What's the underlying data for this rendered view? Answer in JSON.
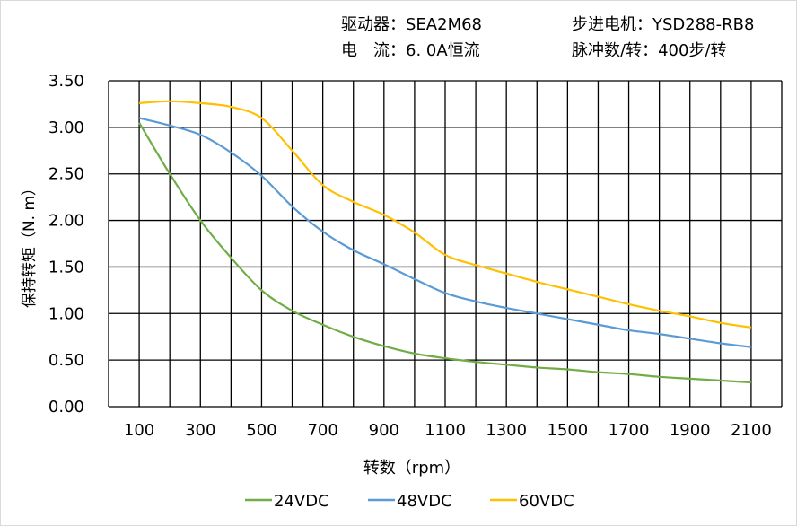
{
  "header": {
    "driver": "驱动器：SEA2M68",
    "motor": "步进电机：YSD288-RB8",
    "current": "电　流：6. 0A恒流",
    "pulses": "脉冲数/转：400步/转"
  },
  "chart_data": {
    "type": "line",
    "title": "",
    "xlabel": "转数（rpm）",
    "ylabel": "保持转矩（N. m）",
    "xlim": [
      0,
      2200
    ],
    "ylim": [
      0,
      3.5
    ],
    "grid": true,
    "legend_position": "bottom",
    "x_ticks": [
      "100",
      "300",
      "500",
      "700",
      "900",
      "1100",
      "1300",
      "1500",
      "1700",
      "1900",
      "2100"
    ],
    "y_ticks": [
      "0.00",
      "0.50",
      "1.00",
      "1.50",
      "2.00",
      "2.50",
      "3.00",
      "3.50"
    ],
    "x": [
      100,
      200,
      300,
      400,
      500,
      600,
      700,
      800,
      900,
      1000,
      1100,
      1200,
      1300,
      1400,
      1500,
      1600,
      1700,
      1800,
      1900,
      2000,
      2100
    ],
    "series": [
      {
        "name": "24VDC",
        "color": "#70ad47",
        "values": [
          3.05,
          2.5,
          2.0,
          1.6,
          1.25,
          1.03,
          0.88,
          0.75,
          0.65,
          0.57,
          0.52,
          0.48,
          0.45,
          0.42,
          0.4,
          0.37,
          0.35,
          0.32,
          0.3,
          0.28,
          0.26
        ]
      },
      {
        "name": "48VDC",
        "color": "#5b9bd5",
        "values": [
          3.1,
          3.02,
          2.92,
          2.73,
          2.48,
          2.15,
          1.88,
          1.68,
          1.53,
          1.37,
          1.22,
          1.13,
          1.06,
          1.0,
          0.94,
          0.88,
          0.82,
          0.78,
          0.73,
          0.68,
          0.64
        ]
      },
      {
        "name": "60VDC",
        "color": "#ffc000",
        "values": [
          3.26,
          3.28,
          3.26,
          3.22,
          3.1,
          2.75,
          2.38,
          2.2,
          2.06,
          1.87,
          1.63,
          1.52,
          1.43,
          1.34,
          1.26,
          1.18,
          1.1,
          1.03,
          0.97,
          0.9,
          0.85
        ]
      }
    ]
  }
}
